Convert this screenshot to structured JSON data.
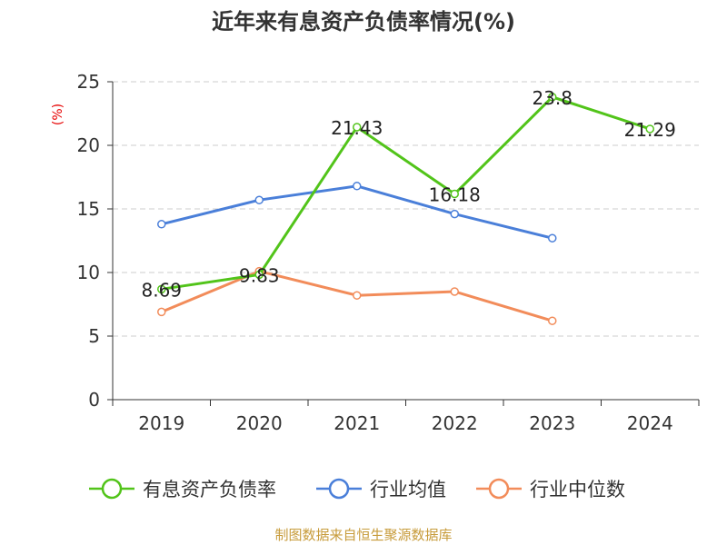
{
  "chart_data": {
    "type": "line",
    "title": "近年来有息资产负债率情况(%)",
    "ylabel": "(%)",
    "categories": [
      "2019",
      "2020",
      "2021",
      "2022",
      "2023",
      "2024"
    ],
    "ylim": [
      0,
      25
    ],
    "yticks": [
      0,
      5,
      10,
      15,
      20,
      25
    ],
    "grid": true,
    "legend_position": "bottom",
    "series": [
      {
        "name": "有息资产负债率",
        "color": "#52c41a",
        "values": [
          8.69,
          9.83,
          21.43,
          16.18,
          23.8,
          21.29
        ],
        "labels": [
          "8.69",
          "9.83",
          "21.43",
          "16.18",
          "23.8",
          "21.29"
        ]
      },
      {
        "name": "行业均值",
        "color": "#4a7fd9",
        "values": [
          13.8,
          15.7,
          16.8,
          14.6,
          12.7,
          null
        ]
      },
      {
        "name": "行业中位数",
        "color": "#f28c5a",
        "values": [
          6.9,
          10.1,
          8.2,
          8.5,
          6.2,
          null
        ]
      }
    ]
  },
  "source": "制图数据来自恒生聚源数据库"
}
